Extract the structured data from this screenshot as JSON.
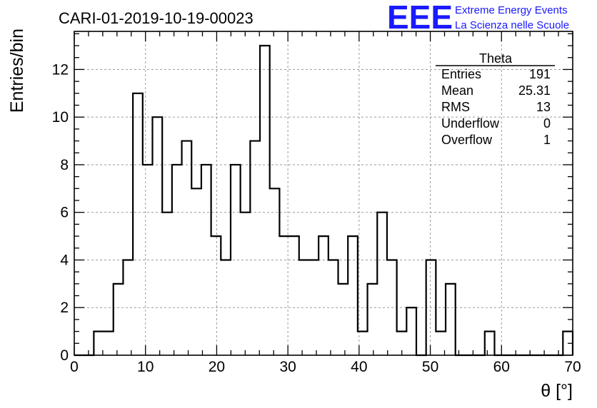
{
  "header": {
    "run_title": "CARI-01-2019-10-19-00023",
    "logo_text": "EEE",
    "logo_line1": "Extreme Energy Events",
    "logo_line2": "La Scienza nelle Scuole"
  },
  "stats": {
    "title": "Theta",
    "rows": [
      {
        "label": "Entries",
        "value": "191"
      },
      {
        "label": "Mean",
        "value": "25.31"
      },
      {
        "label": "RMS",
        "value": "13"
      },
      {
        "label": "Underflow",
        "value": "0"
      },
      {
        "label": "Overflow",
        "value": "1"
      }
    ]
  },
  "chart_data": {
    "type": "histogram",
    "xlabel": "θ [°]",
    "ylabel": "Entries/bin",
    "xlim": [
      0,
      70
    ],
    "ylim": [
      0,
      13.6
    ],
    "grid": true,
    "x_ticks": [
      0,
      10,
      20,
      30,
      40,
      50,
      60,
      70
    ],
    "y_ticks": [
      0,
      2,
      4,
      6,
      8,
      10,
      12
    ],
    "bin_width": 1.3725,
    "bin_edges_start": 0,
    "values": [
      0,
      0,
      1,
      1,
      3,
      4,
      11,
      8,
      10,
      6,
      8,
      9,
      7,
      8,
      5,
      4,
      8,
      6,
      9,
      13,
      7,
      5,
      5,
      4,
      4,
      5,
      4,
      3,
      5,
      1,
      3,
      6,
      4,
      1,
      2,
      0,
      4,
      1,
      3,
      0,
      0,
      0,
      1,
      0,
      0,
      0,
      0,
      0,
      0,
      0,
      1
    ]
  }
}
